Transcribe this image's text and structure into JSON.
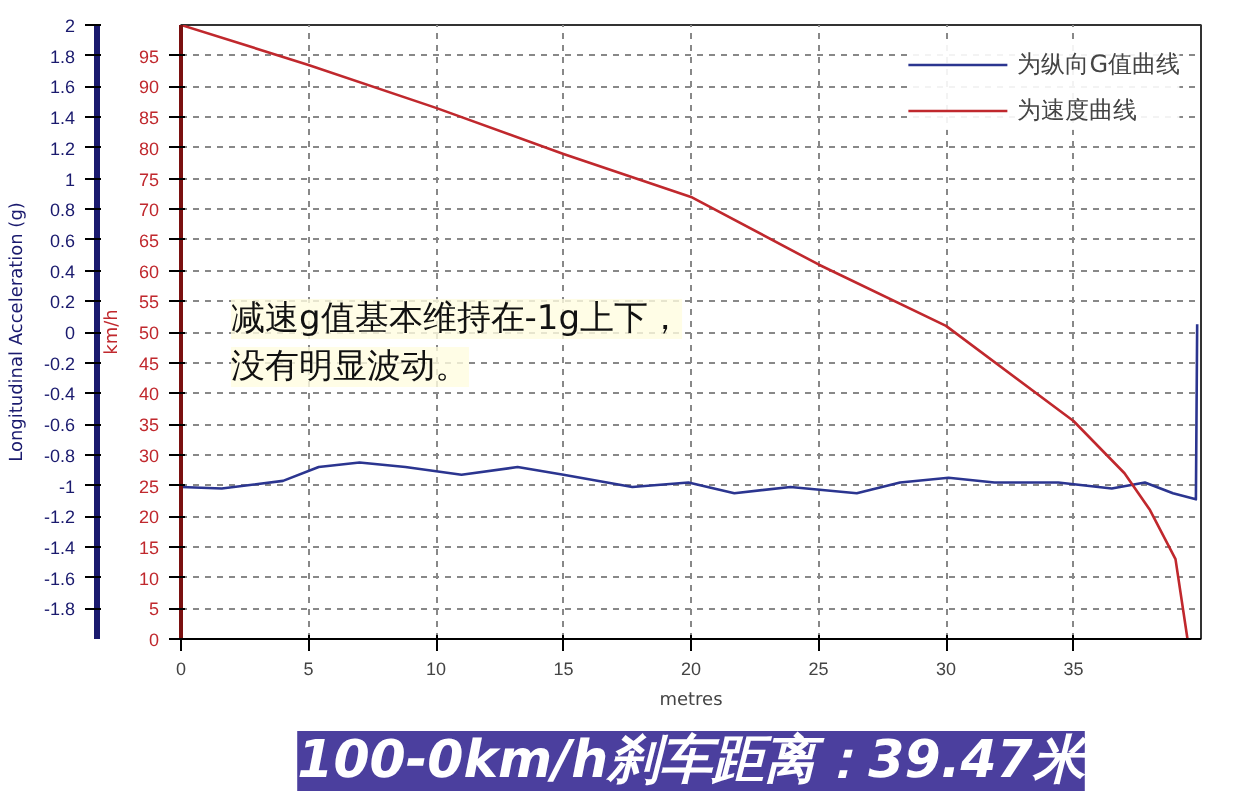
{
  "chart_data": {
    "type": "line",
    "title": "100-0km/h刹车距离：39.47米",
    "xlabel": "metres",
    "ylabel": "Longitudinal Acceleration (g)",
    "y2label": "km/h",
    "annotations": [
      "减速g值基本维持在-1g上下，",
      "没有明显波动。"
    ],
    "xlim": [
      0,
      40
    ],
    "xticks": [
      0,
      5,
      10,
      15,
      20,
      25,
      30,
      35
    ],
    "ylim": [
      -2,
      2
    ],
    "yticks": [
      -1.8,
      -1.6,
      -1.4,
      -1.2,
      -1,
      -0.8,
      -0.6,
      -0.4,
      -0.2,
      0,
      0.2,
      0.4,
      0.6,
      0.8,
      1,
      1.2,
      1.4,
      1.6,
      1.8,
      2
    ],
    "y2lim": [
      0,
      100
    ],
    "y2ticks": [
      0,
      5,
      10,
      15,
      20,
      25,
      30,
      35,
      40,
      45,
      50,
      55,
      60,
      65,
      70,
      75,
      80,
      85,
      90,
      95
    ],
    "grid": true,
    "legend": "top right",
    "line_style": "solid",
    "series": [
      {
        "name": "为纵向G值曲线",
        "color": "#2b3590",
        "x": [
          0,
          1.6,
          4,
          5.4,
          7,
          8.8,
          11,
          13.2,
          15,
          17.7,
          19.9,
          21.7,
          23.9,
          26.5,
          28.2,
          30.1,
          31.9,
          34.4,
          36.5,
          37.8,
          38.9,
          39.8,
          39.85
        ],
        "values": [
          -1.01,
          -1.02,
          -0.97,
          -0.88,
          -0.85,
          -0.88,
          -0.93,
          -0.88,
          -0.93,
          -1.01,
          -0.98,
          -1.05,
          -1.01,
          -1.05,
          -0.98,
          -0.95,
          -0.98,
          -0.98,
          -1.02,
          -0.98,
          -1.05,
          -1.09,
          0.05
        ]
      },
      {
        "name": "为速度曲线",
        "color": "#c0282d",
        "axis": "y2",
        "x": [
          0,
          5,
          10,
          15,
          20,
          25,
          30,
          35,
          37,
          38,
          39,
          39.47
        ],
        "values": [
          100,
          93.5,
          86.5,
          79,
          72,
          61,
          51,
          35.5,
          27,
          21,
          13,
          0
        ]
      }
    ]
  }
}
